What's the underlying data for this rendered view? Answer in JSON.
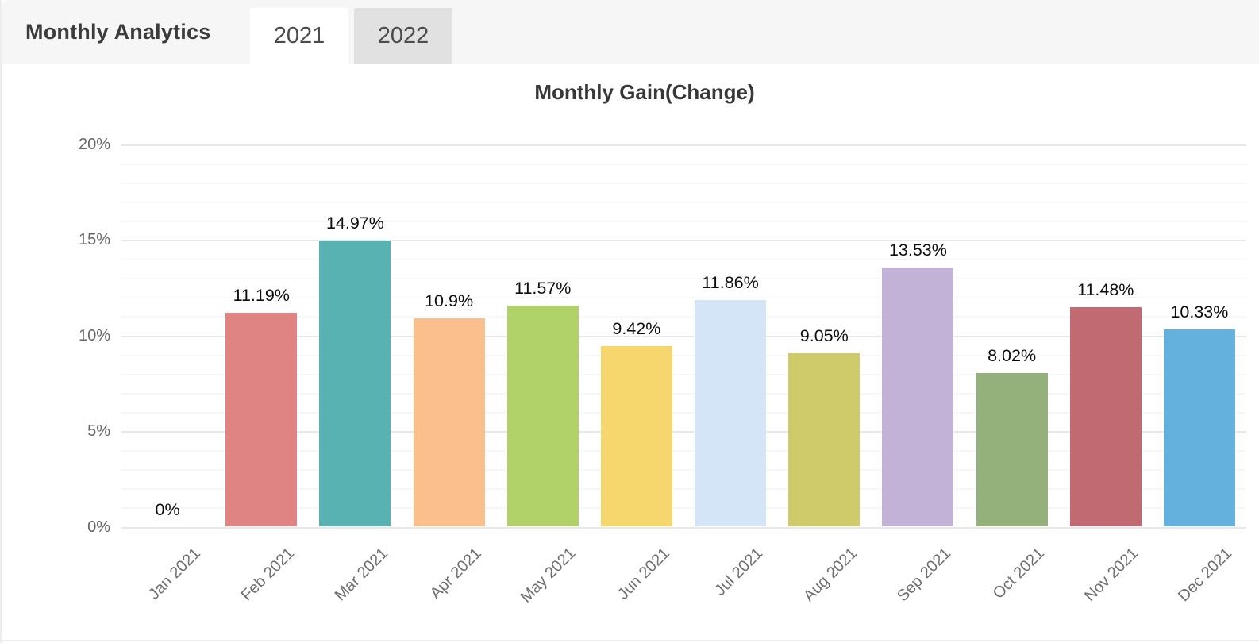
{
  "header": {
    "title": "Monthly Analytics",
    "tabs": [
      {
        "label": "2021",
        "active": true
      },
      {
        "label": "2022",
        "active": false
      }
    ]
  },
  "chart_data": {
    "type": "bar",
    "title": "Monthly Gain(Change)",
    "categories": [
      "Jan 2021",
      "Feb 2021",
      "Mar 2021",
      "Apr 2021",
      "May 2021",
      "Jun 2021",
      "Jul 2021",
      "Aug 2021",
      "Sep 2021",
      "Oct 2021",
      "Nov 2021",
      "Dec 2021"
    ],
    "values": [
      0,
      11.19,
      14.97,
      10.9,
      11.57,
      9.42,
      11.86,
      9.05,
      13.53,
      8.02,
      11.48,
      10.33
    ],
    "value_labels": [
      "0%",
      "11.19%",
      "14.97%",
      "10.9%",
      "11.57%",
      "9.42%",
      "11.86%",
      "9.05%",
      "13.53%",
      "8.02%",
      "11.48%",
      "10.33%"
    ],
    "bar_colors": [
      "transparent",
      "#e08383",
      "#58b2b2",
      "#fbbe8d",
      "#b0d268",
      "#f5d76e",
      "#d4e5f7",
      "#cfca6a",
      "#c3b2d8",
      "#95b17b",
      "#c16a72",
      "#64b1de"
    ],
    "xlabel": "",
    "ylabel": "",
    "ylim": [
      0,
      20
    ],
    "y_major_step": 5,
    "y_minor_step": 1,
    "y_tick_labels": [
      "0%",
      "5%",
      "10%",
      "15%",
      "20%"
    ],
    "grid": true,
    "legend": "none",
    "x_tick_rotation_deg": -45
  }
}
